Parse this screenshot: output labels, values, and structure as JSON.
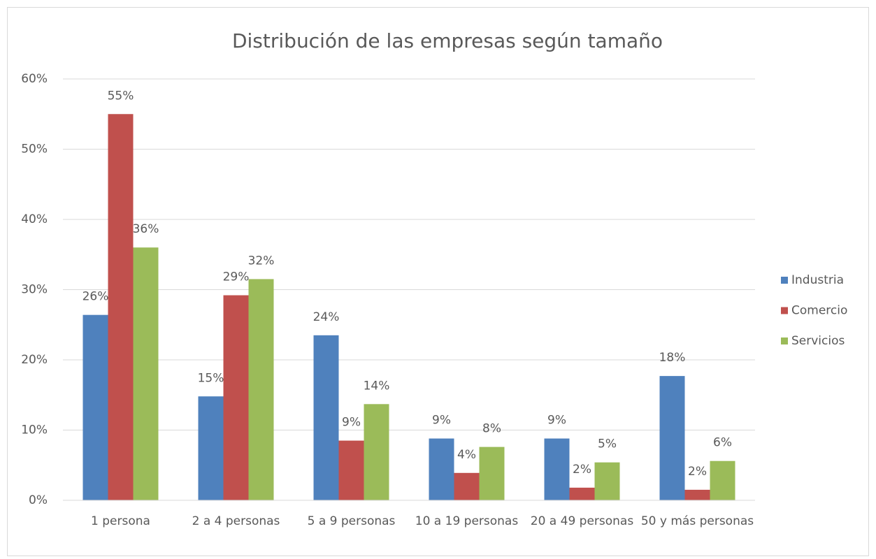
{
  "chart_data": {
    "type": "bar",
    "title": "Distribución de las empresas según tamaño",
    "categories": [
      "1 persona",
      "2 a 4 personas",
      "5 a 9 personas",
      "10 a 19 personas",
      "20 a 49 personas",
      "50 y más personas"
    ],
    "series": [
      {
        "name": "Industria",
        "color": "#4f81bd",
        "values": [
          26.4,
          14.8,
          23.5,
          8.8,
          8.8,
          17.7
        ],
        "value_labels": [
          "26%",
          "15%",
          "24%",
          "9%",
          "9%",
          "18%"
        ]
      },
      {
        "name": "Comercio",
        "color": "#c0504d",
        "values": [
          55.0,
          29.2,
          8.5,
          3.9,
          1.8,
          1.5
        ],
        "value_labels": [
          "55%",
          "29%",
          "9%",
          "4%",
          "2%",
          "2%"
        ]
      },
      {
        "name": "Servicios",
        "color": "#9bbb59",
        "values": [
          36.0,
          31.5,
          13.7,
          7.6,
          5.4,
          5.6
        ],
        "value_labels": [
          "36%",
          "32%",
          "14%",
          "8%",
          "5%",
          "6%"
        ]
      }
    ],
    "ylim": [
      0,
      60
    ],
    "yticks": [
      {
        "value": 0,
        "label": "0%"
      },
      {
        "value": 10,
        "label": "10%"
      },
      {
        "value": 20,
        "label": "20%"
      },
      {
        "value": 30,
        "label": "30%"
      },
      {
        "value": 40,
        "label": "40%"
      },
      {
        "value": 50,
        "label": "50%"
      },
      {
        "value": 60,
        "label": "60%"
      }
    ],
    "grid": true,
    "legend": "right"
  }
}
